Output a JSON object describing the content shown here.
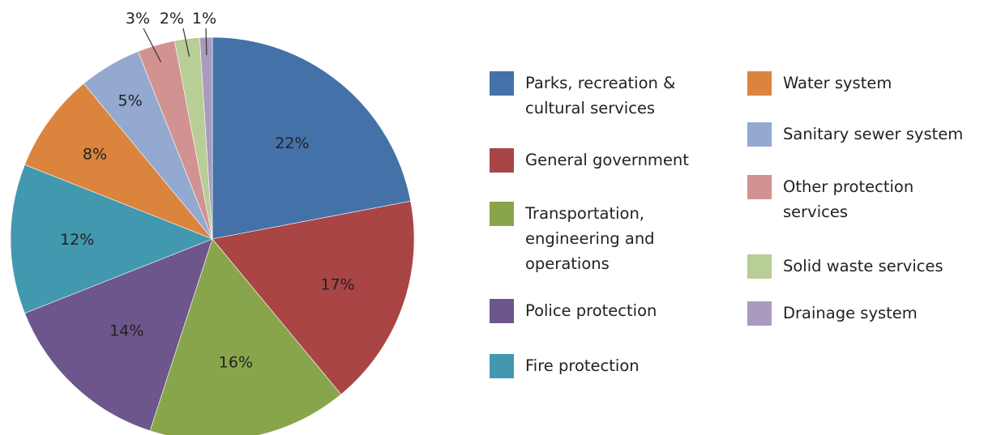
{
  "chart_data": {
    "type": "pie",
    "title": "",
    "legend_position": "right",
    "slices": [
      {
        "label": "Parks, recreation & cultural services",
        "value": 22,
        "value_label": "22%",
        "color": "#4472a8"
      },
      {
        "label": "General government",
        "value": 17,
        "value_label": "17%",
        "color": "#a94545"
      },
      {
        "label": "Transportation, engineering and operations",
        "value": 16,
        "value_label": "16%",
        "color": "#88a54c"
      },
      {
        "label": "Police protection",
        "value": 14,
        "value_label": "14%",
        "color": "#6d568c"
      },
      {
        "label": "Fire protection",
        "value": 12,
        "value_label": "12%",
        "color": "#4298ae"
      },
      {
        "label": "Water system",
        "value": 8,
        "value_label": "8%",
        "color": "#db843d"
      },
      {
        "label": "Sanitary sewer system",
        "value": 5,
        "value_label": "5%",
        "color": "#93a9d0"
      },
      {
        "label": "Other protection services",
        "value": 3,
        "value_label": "3%",
        "color": "#d09392"
      },
      {
        "label": "Solid waste services",
        "value": 2,
        "value_label": "2%",
        "color": "#b9cd96"
      },
      {
        "label": "Drainage system",
        "value": 1,
        "value_label": "1%",
        "color": "#a99bbd"
      }
    ]
  }
}
